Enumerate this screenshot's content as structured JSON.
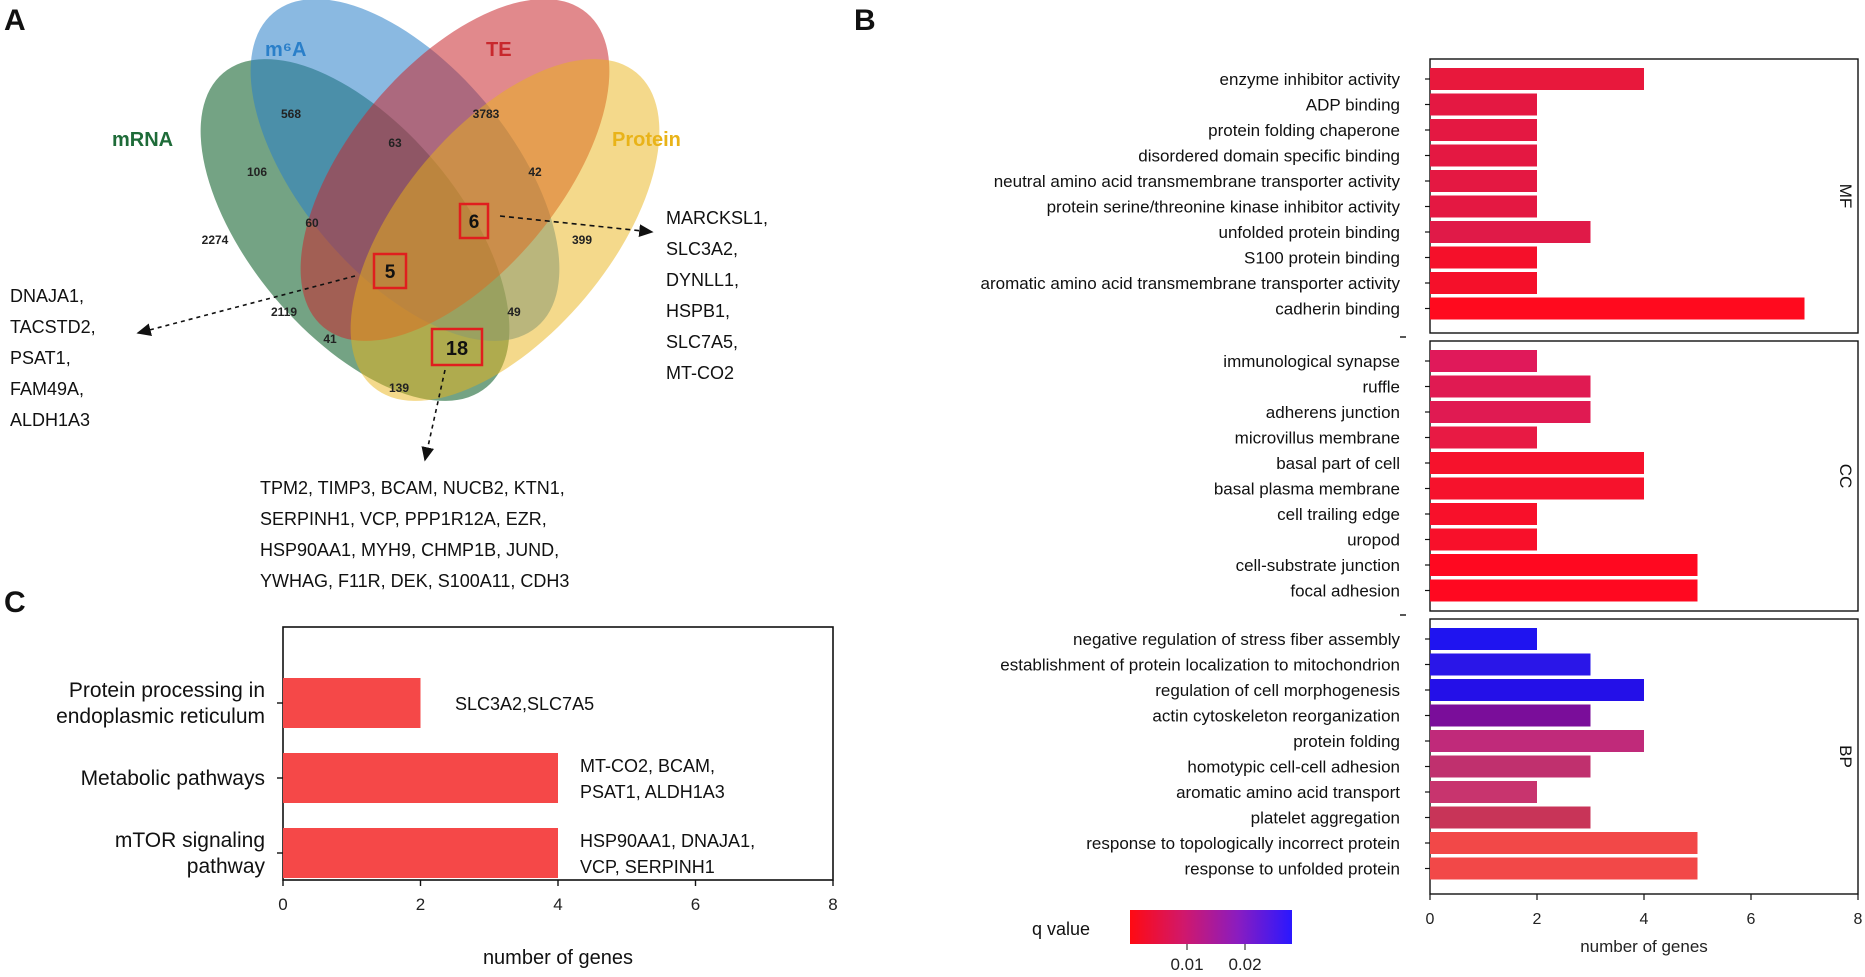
{
  "panels": {
    "a": "A",
    "b": "B",
    "c": "C"
  },
  "venn": {
    "sets": [
      {
        "name": "m⁶A",
        "color": "#2a7fc9"
      },
      {
        "name": "TE",
        "color": "#c8282d"
      },
      {
        "name": "mRNA",
        "color": "#1e6b38"
      },
      {
        "name": "Protein",
        "color": "#e9b318"
      }
    ],
    "regions": [
      "568",
      "3783",
      "63",
      "106",
      "42",
      "60",
      "6",
      "2274",
      "399",
      "5",
      "2119",
      "49",
      "41",
      "18",
      "139"
    ],
    "callouts": [
      {
        "id": "six",
        "genes": [
          "MARCKSL1,",
          "SLC3A2,",
          "DYNLL1,",
          "HSPB1,",
          "SLC7A5,",
          "MT-CO2"
        ]
      },
      {
        "id": "five",
        "genes": [
          "DNAJA1,",
          "TACSTD2,",
          "PSAT1,",
          "FAM49A,",
          "ALDH1A3"
        ]
      },
      {
        "id": "eighteen",
        "genes": [
          "TPM2, TIMP3, BCAM, NUCB2, KTN1,",
          "SERPINH1, VCP, PPP1R12A, EZR,",
          "HSP90AA1, MYH9, CHMP1B, JUND,",
          "YWHAG, F11R, DEK, S100A11, CDH3"
        ]
      }
    ]
  },
  "chart_data": [
    {
      "type": "bar",
      "panel": "C",
      "orientation": "horizontal",
      "categories": [
        [
          "Protein processing in",
          "endoplasmic reticulum"
        ],
        [
          "Metabolic pathways"
        ],
        [
          "mTOR signaling",
          "pathway"
        ]
      ],
      "values": [
        2,
        4,
        4
      ],
      "bar_labels": [
        [
          "SLC3A2,SLC7A5"
        ],
        [
          "MT-CO2, BCAM,",
          "PSAT1, ALDH1A3"
        ],
        [
          "HSP90AA1, DNAJA1,",
          "VCP, SERPINH1"
        ]
      ],
      "bar_color": "#f54848",
      "xlabel": "number of genes",
      "xlim": [
        0,
        8
      ],
      "xticks": [
        "0",
        "2",
        "4",
        "6",
        "8"
      ]
    },
    {
      "type": "bar",
      "panel": "B",
      "orientation": "horizontal",
      "xlabel": "number of genes",
      "xlim": [
        0,
        8
      ],
      "xticks": [
        "0",
        "2",
        "4",
        "6",
        "8"
      ],
      "facets": [
        {
          "name": "MF",
          "terms": [
            {
              "label": "enzyme inhibitor activity",
              "value": 4,
              "color": "#e8183c"
            },
            {
              "label": "ADP binding",
              "value": 2,
              "color": "#e41842"
            },
            {
              "label": "protein folding chaperone",
              "value": 2,
              "color": "#e41842"
            },
            {
              "label": "disordered domain specific binding",
              "value": 2,
              "color": "#e41842"
            },
            {
              "label": "neutral amino acid transmembrane transporter activity",
              "value": 2,
              "color": "#e41842"
            },
            {
              "label": "protein serine/threonine kinase inhibitor activity",
              "value": 2,
              "color": "#e41842"
            },
            {
              "label": "unfolded protein binding",
              "value": 3,
              "color": "#e01a48"
            },
            {
              "label": "S100 protein binding",
              "value": 2,
              "color": "#f5102a"
            },
            {
              "label": "aromatic amino acid transmembrane transporter activity",
              "value": 2,
              "color": "#f5102a"
            },
            {
              "label": "cadherin binding",
              "value": 7,
              "color": "#ff0a1e"
            }
          ]
        },
        {
          "name": "CC",
          "terms": [
            {
              "label": "immunological synapse",
              "value": 2,
              "color": "#e0195a"
            },
            {
              "label": "ruffle",
              "value": 3,
              "color": "#e01a52"
            },
            {
              "label": "adherens junction",
              "value": 3,
              "color": "#e01a52"
            },
            {
              "label": "microvillus membrane",
              "value": 2,
              "color": "#e81a44"
            },
            {
              "label": "basal part of cell",
              "value": 4,
              "color": "#f6122c"
            },
            {
              "label": "basal plasma membrane",
              "value": 4,
              "color": "#f6122c"
            },
            {
              "label": "cell trailing edge",
              "value": 2,
              "color": "#f8102a"
            },
            {
              "label": "uropod",
              "value": 2,
              "color": "#f8102a"
            },
            {
              "label": "cell-substrate junction",
              "value": 5,
              "color": "#ff0820"
            },
            {
              "label": "focal adhesion",
              "value": 5,
              "color": "#ff0820"
            }
          ]
        },
        {
          "name": "BP",
          "terms": [
            {
              "label": "negative regulation of stress fiber assembly",
              "value": 2,
              "color": "#1f14f0"
            },
            {
              "label": "establishment of protein localization to mitochondrion",
              "value": 3,
              "color": "#2a16e8"
            },
            {
              "label": "regulation of cell morphogenesis",
              "value": 4,
              "color": "#2410e8"
            },
            {
              "label": "actin cytoskeleton reorganization",
              "value": 3,
              "color": "#7a0d9a"
            },
            {
              "label": "protein folding",
              "value": 4,
              "color": "#c02a7a"
            },
            {
              "label": "homotypic cell-cell adhesion",
              "value": 3,
              "color": "#c0306e"
            },
            {
              "label": "aromatic amino acid transport",
              "value": 2,
              "color": "#c8346e"
            },
            {
              "label": "platelet aggregation",
              "value": 3,
              "color": "#c83458"
            },
            {
              "label": "response to topologically incorrect protein",
              "value": 5,
              "color": "#f24848"
            },
            {
              "label": "response to unfolded protein",
              "value": 5,
              "color": "#f24848"
            }
          ]
        }
      ],
      "legend": {
        "title": "q value",
        "ticks": [
          "0.01",
          "0.02"
        ],
        "gradient": [
          "#ff0a12",
          "#d0186c",
          "#8a1cc0",
          "#2a18ff"
        ]
      }
    }
  ]
}
